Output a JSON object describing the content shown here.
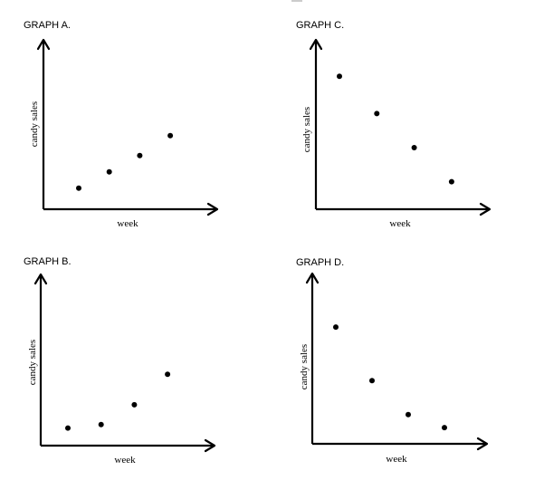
{
  "chart_data": [
    {
      "type": "scatter",
      "title": "GRAPH A.",
      "xlabel": "week",
      "ylabel": "candy sales",
      "x": [
        1,
        2,
        3,
        4
      ],
      "y": [
        1.8,
        3.2,
        4.6,
        6.3
      ],
      "xlim": [
        0,
        5.5
      ],
      "ylim": [
        0,
        10
      ]
    },
    {
      "type": "scatter",
      "title": "GRAPH B.",
      "xlabel": "week",
      "ylabel": "candy sales",
      "x": [
        1,
        2,
        3,
        4
      ],
      "y": [
        1.5,
        1.8,
        3.5,
        6.1
      ],
      "xlim": [
        0,
        5.5
      ],
      "ylim": [
        0,
        10
      ]
    },
    {
      "type": "scatter",
      "title": "GRAPH C.",
      "xlabel": "week",
      "ylabel": "candy sales",
      "x": [
        1,
        2,
        3,
        4
      ],
      "y": [
        8.2,
        5.9,
        3.8,
        1.7
      ],
      "xlim": [
        0,
        5.5
      ],
      "ylim": [
        0,
        10
      ]
    },
    {
      "type": "scatter",
      "title": "GRAPH D.",
      "xlabel": "week",
      "ylabel": "candy sales",
      "x": [
        1,
        2,
        3,
        4
      ],
      "y": [
        7.2,
        3.9,
        1.8,
        1.0
      ],
      "xlim": [
        0,
        5.5
      ],
      "ylim": [
        0,
        10
      ]
    }
  ]
}
